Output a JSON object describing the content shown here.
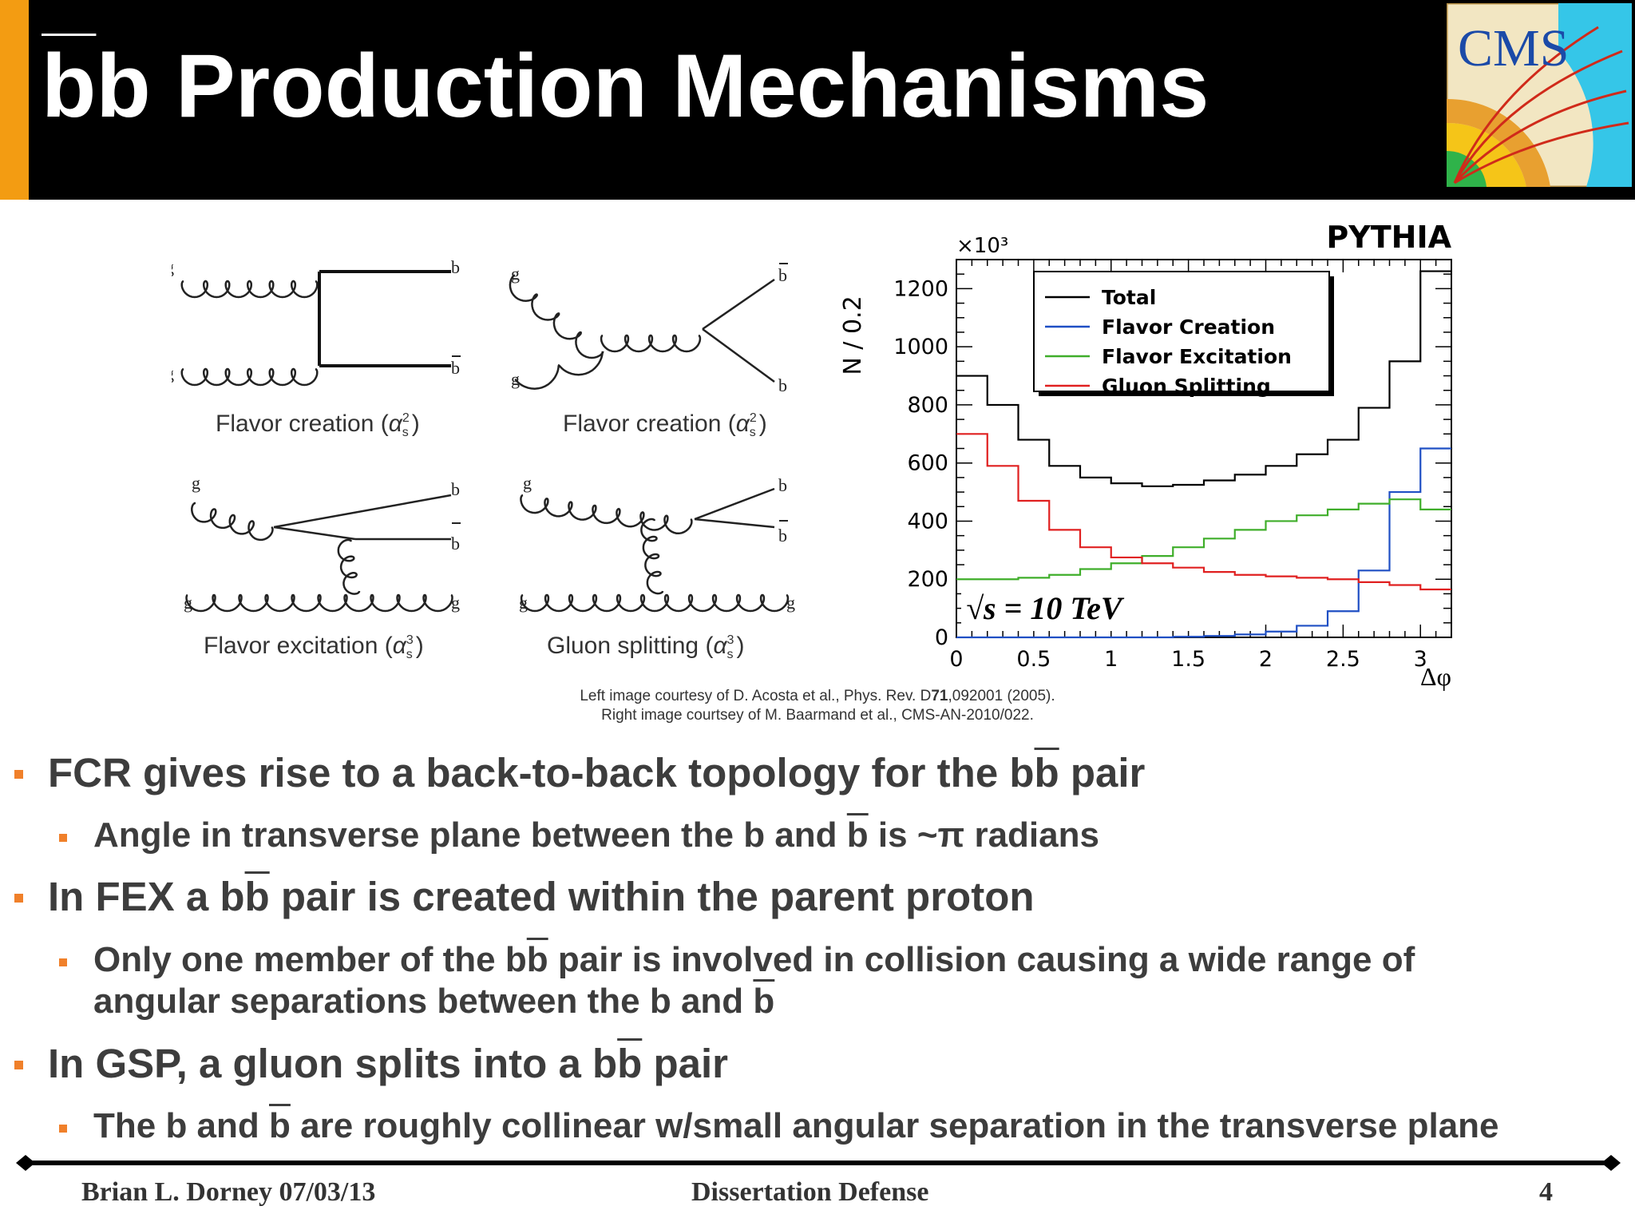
{
  "header": {
    "title_bb_1": "b",
    "title_bb_2": "b",
    "title_rest": " Production Mechanisms",
    "logo_text": "CMS"
  },
  "diagrams": {
    "items": [
      {
        "label": "Flavor creation (",
        "order": "2"
      },
      {
        "label": "Flavor creation (",
        "order": "2"
      },
      {
        "label": "Flavor excitation (",
        "order": "3"
      },
      {
        "label": "Gluon splitting (",
        "order": "3"
      }
    ],
    "alpha": "α",
    "sub": "s",
    "close": ")",
    "g": "g",
    "b": "b"
  },
  "chart_data": {
    "type": "line",
    "title": "PYTHIA",
    "xlabel": "Δφ",
    "ylabel": "N / 0.2",
    "y_multiplier": "×10³",
    "xlim": [
      0,
      3.2
    ],
    "ylim": [
      0,
      1300
    ],
    "x_ticks": [
      "0",
      "0.5",
      "1",
      "1.5",
      "2",
      "2.5",
      "3"
    ],
    "y_ticks": [
      "0",
      "200",
      "400",
      "600",
      "800",
      "1000",
      "1200"
    ],
    "annotation": "√s = 10 TeV",
    "legend_position": "top-center",
    "bin_edges": [
      0,
      0.2,
      0.4,
      0.6,
      0.8,
      1.0,
      1.2,
      1.4,
      1.6,
      1.8,
      2.0,
      2.2,
      2.4,
      2.6,
      2.8,
      3.0,
      3.2
    ],
    "series": [
      {
        "name": "Total",
        "color": "#000000",
        "values": [
          900,
          800,
          680,
          590,
          550,
          530,
          520,
          525,
          540,
          560,
          590,
          630,
          680,
          790,
          950,
          1260
        ]
      },
      {
        "name": "Flavor Creation",
        "color": "#1f4fc4",
        "values": [
          0,
          0,
          0,
          0,
          0,
          0,
          0,
          2,
          5,
          10,
          20,
          40,
          90,
          230,
          500,
          650
        ]
      },
      {
        "name": "Flavor Excitation",
        "color": "#3fae2a",
        "values": [
          200,
          200,
          205,
          215,
          235,
          255,
          280,
          310,
          340,
          370,
          400,
          420,
          440,
          460,
          475,
          440
        ]
      },
      {
        "name": "Gluon Splitting",
        "color": "#e02020",
        "values": [
          700,
          590,
          470,
          370,
          310,
          275,
          255,
          240,
          225,
          215,
          210,
          205,
          200,
          190,
          180,
          165
        ]
      }
    ]
  },
  "captions": {
    "line1_pre": "Left image courtesy of D. Acosta et al., Phys. Rev. D",
    "line1_bold": "71",
    "line1_post": ",092001 (2005).",
    "line2": "Right image courtsey of M. Baarmand et al., CMS-AN-2010/022."
  },
  "bullets": {
    "b1_pre": "FCR gives rise to a back-to-back topology for the b",
    "b1_ob": "b",
    "b1_post": " pair",
    "b1s_pre": "Angle in transverse plane between the b and ",
    "b1s_ob": "b",
    "b1s_post": " is ~π radians",
    "b2_pre": "In FEX a b",
    "b2_ob": "b",
    "b2_post": " pair is created within the parent proton",
    "b2s_pre": "Only one member of the b",
    "b2s_ob": "b",
    "b2s_post": " pair is involved in collision causing a wide range of",
    "b2s_line2_pre": "angular separations between the b and ",
    "b2s_line2_ob": "b",
    "b3_pre": "In GSP, a gluon splits into a b",
    "b3_ob": "b",
    "b3_post": " pair",
    "b3s_pre": "The b and ",
    "b3s_ob": "b",
    "b3s_post": " are roughly collinear w/small angular separation in the transverse plane"
  },
  "footer": {
    "author": "Brian L. Dorney 07/03/13",
    "event": "Dissertation Defense",
    "page": "4"
  },
  "colors": {
    "accent": "#f39c12",
    "bullet": "#f0802a",
    "header_bg": "#000000"
  }
}
